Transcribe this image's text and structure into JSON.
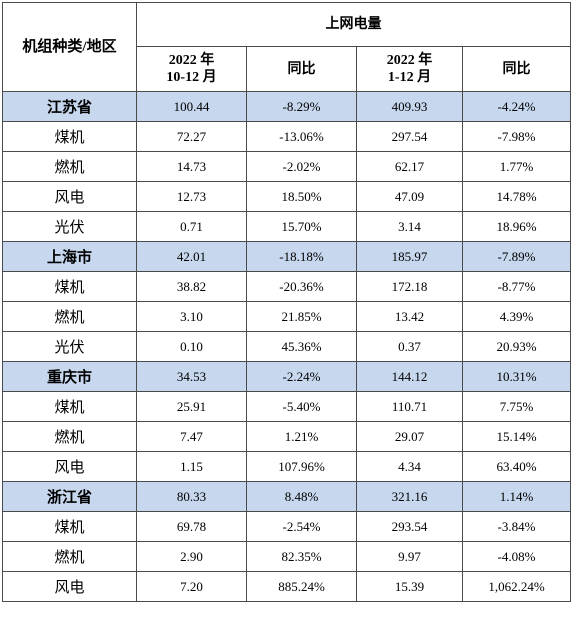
{
  "header": {
    "category": "机组种类/地区",
    "group": "上网电量",
    "period1_year": "2022 年",
    "period1_range": "10-12 月",
    "yoy1": "同比",
    "period2_year": "2022 年",
    "period2_range": "1-12 月",
    "yoy2": "同比"
  },
  "rows": [
    {
      "name": "江苏省",
      "region": true,
      "v1": "100.44",
      "y1": "-8.29%",
      "v2": "409.93",
      "y2": "-4.24%"
    },
    {
      "name": "煤机",
      "region": false,
      "v1": "72.27",
      "y1": "-13.06%",
      "v2": "297.54",
      "y2": "-7.98%"
    },
    {
      "name": "燃机",
      "region": false,
      "v1": "14.73",
      "y1": "-2.02%",
      "v2": "62.17",
      "y2": "1.77%"
    },
    {
      "name": "风电",
      "region": false,
      "v1": "12.73",
      "y1": "18.50%",
      "v2": "47.09",
      "y2": "14.78%"
    },
    {
      "name": "光伏",
      "region": false,
      "v1": "0.71",
      "y1": "15.70%",
      "v2": "3.14",
      "y2": "18.96%"
    },
    {
      "name": "上海市",
      "region": true,
      "v1": "42.01",
      "y1": "-18.18%",
      "v2": "185.97",
      "y2": "-7.89%"
    },
    {
      "name": "煤机",
      "region": false,
      "v1": "38.82",
      "y1": "-20.36%",
      "v2": "172.18",
      "y2": "-8.77%"
    },
    {
      "name": "燃机",
      "region": false,
      "v1": "3.10",
      "y1": "21.85%",
      "v2": "13.42",
      "y2": "4.39%"
    },
    {
      "name": "光伏",
      "region": false,
      "v1": "0.10",
      "y1": "45.36%",
      "v2": "0.37",
      "y2": "20.93%"
    },
    {
      "name": "重庆市",
      "region": true,
      "v1": "34.53",
      "y1": "-2.24%",
      "v2": "144.12",
      "y2": "10.31%"
    },
    {
      "name": "煤机",
      "region": false,
      "v1": "25.91",
      "y1": "-5.40%",
      "v2": "110.71",
      "y2": "7.75%"
    },
    {
      "name": "燃机",
      "region": false,
      "v1": "7.47",
      "y1": "1.21%",
      "v2": "29.07",
      "y2": "15.14%"
    },
    {
      "name": "风电",
      "region": false,
      "v1": "1.15",
      "y1": "107.96%",
      "v2": "4.34",
      "y2": "63.40%"
    },
    {
      "name": "浙江省",
      "region": true,
      "v1": "80.33",
      "y1": "8.48%",
      "v2": "321.16",
      "y2": "1.14%"
    },
    {
      "name": "煤机",
      "region": false,
      "v1": "69.78",
      "y1": "-2.54%",
      "v2": "293.54",
      "y2": "-3.84%"
    },
    {
      "name": "燃机",
      "region": false,
      "v1": "2.90",
      "y1": "82.35%",
      "v2": "9.97",
      "y2": "-4.08%"
    },
    {
      "name": "风电",
      "region": false,
      "v1": "7.20",
      "y1": "885.24%",
      "v2": "15.39",
      "y2": "1,062.24%"
    }
  ],
  "colors": {
    "region_bg": "#c6d7ee",
    "border": "#4a4a4a"
  }
}
